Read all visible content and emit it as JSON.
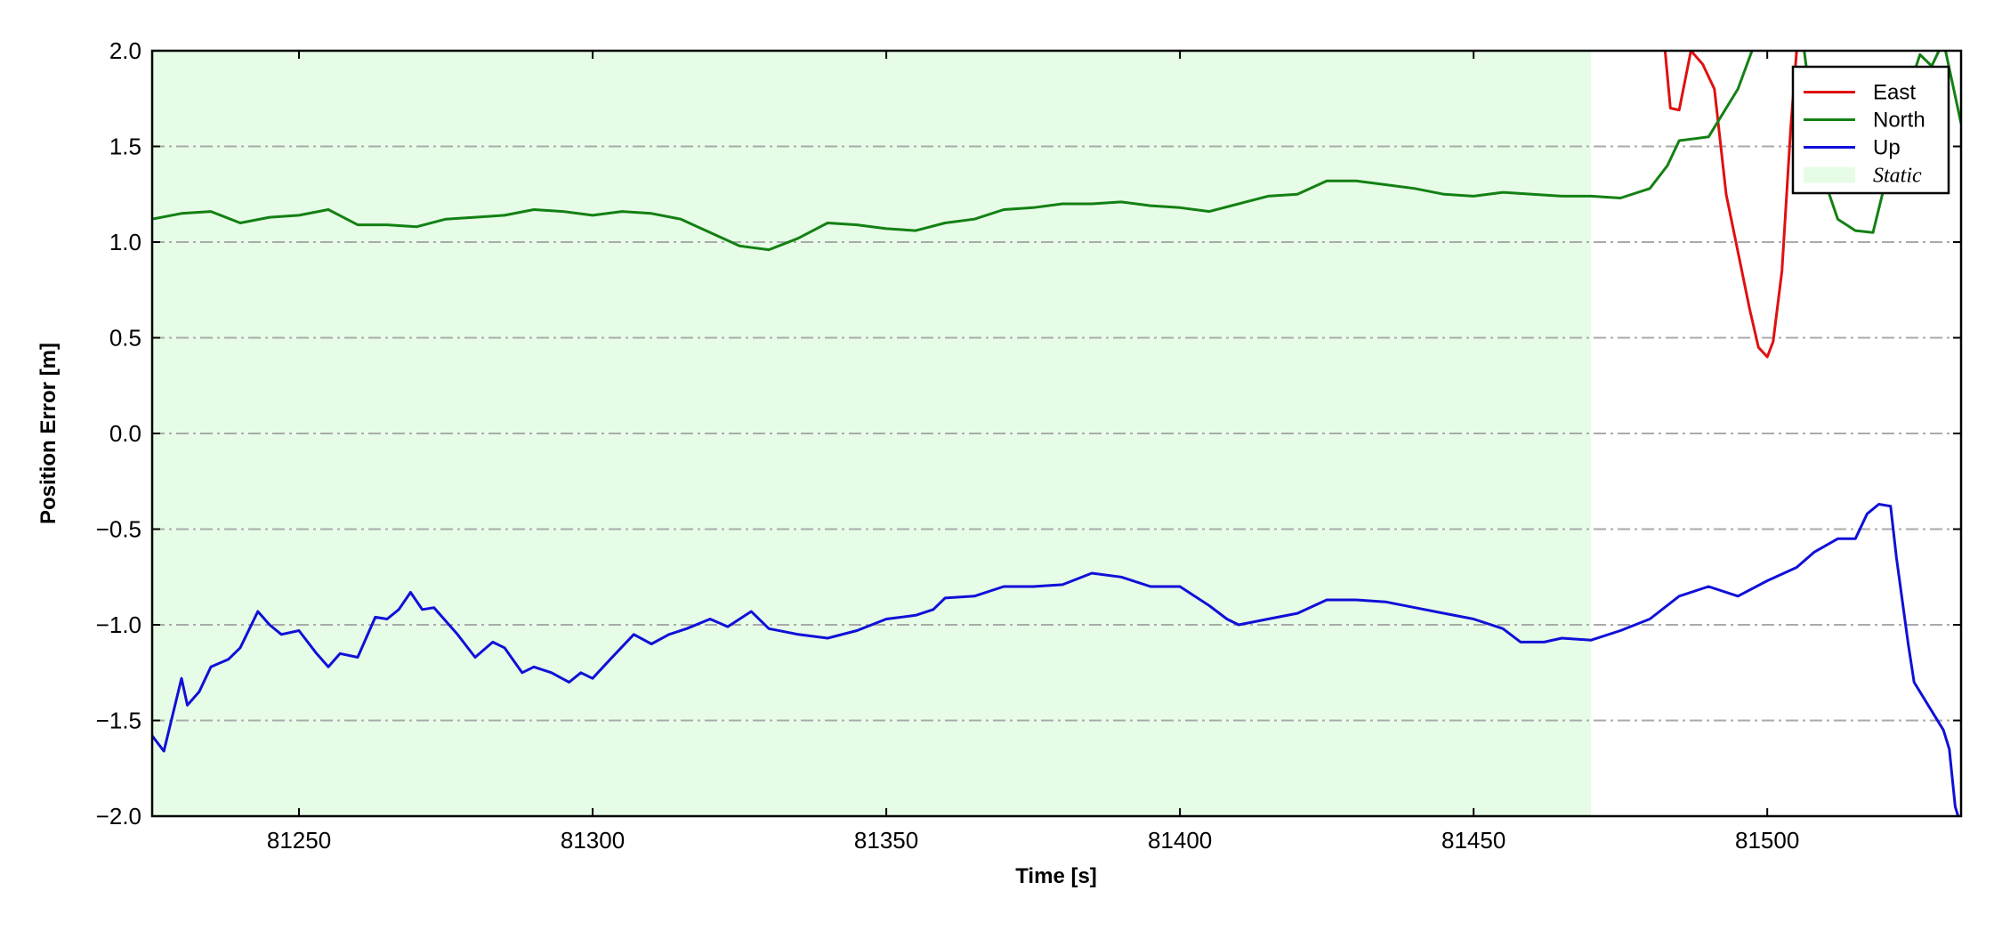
{
  "chart_data": {
    "type": "line",
    "xlabel": "Time [s]",
    "ylabel": "Position Error [m]",
    "xlim": [
      81225,
      81533
    ],
    "ylim": [
      -2,
      2
    ],
    "xticks": [
      81250,
      81300,
      81350,
      81400,
      81450,
      81500
    ],
    "yticks": [
      {
        "value": -2,
        "label": "−2.0"
      },
      {
        "value": -1.5,
        "label": "−1.5"
      },
      {
        "value": -1,
        "label": "−1.0"
      },
      {
        "value": -0.5,
        "label": "−0.5"
      },
      {
        "value": 0,
        "label": "0.0"
      },
      {
        "value": 0.5,
        "label": "0.5"
      },
      {
        "value": 1,
        "label": "1.0"
      },
      {
        "value": 1.5,
        "label": "1.5"
      },
      {
        "value": 2,
        "label": "2.0"
      }
    ],
    "grid": true,
    "legend": "upper right",
    "spans": [
      {
        "name": "Static",
        "start": 81225,
        "end": 81470,
        "color": "#e6fce6"
      }
    ],
    "series": [
      {
        "name": "East",
        "color": "#e01010",
        "x": [
          81482,
          81483.5,
          81485,
          81487,
          81489,
          81491,
          81493,
          81495,
          81497,
          81498.5,
          81500,
          81501,
          81502.5,
          81504,
          81505,
          81506
        ],
        "values": [
          2.2,
          1.7,
          1.69,
          2.0,
          1.93,
          1.8,
          1.25,
          0.95,
          0.65,
          0.45,
          0.4,
          0.48,
          0.85,
          1.6,
          2.0,
          2.3
        ]
      },
      {
        "name": "North",
        "color": "#138013",
        "x": [
          81225,
          81230,
          81235,
          81240,
          81245,
          81250,
          81255,
          81260,
          81265,
          81270,
          81275,
          81280,
          81285,
          81290,
          81295,
          81300,
          81305,
          81310,
          81315,
          81320,
          81325,
          81330,
          81335,
          81340,
          81345,
          81350,
          81355,
          81360,
          81365,
          81370,
          81375,
          81380,
          81385,
          81390,
          81395,
          81400,
          81405,
          81410,
          81415,
          81420,
          81425,
          81430,
          81435,
          81440,
          81445,
          81450,
          81455,
          81460,
          81465,
          81470,
          81475,
          81480,
          81483,
          81485,
          81490,
          81495,
          81498,
          81505,
          81508,
          81510,
          81512,
          81515,
          81518,
          81520,
          81523,
          81526,
          81528,
          81530,
          81533
        ],
        "values": [
          1.12,
          1.15,
          1.16,
          1.1,
          1.13,
          1.14,
          1.17,
          1.09,
          1.09,
          1.08,
          1.12,
          1.13,
          1.14,
          1.17,
          1.16,
          1.14,
          1.16,
          1.15,
          1.12,
          1.05,
          0.98,
          0.96,
          1.02,
          1.1,
          1.09,
          1.07,
          1.06,
          1.1,
          1.12,
          1.17,
          1.18,
          1.2,
          1.2,
          1.21,
          1.19,
          1.18,
          1.16,
          1.2,
          1.24,
          1.25,
          1.32,
          1.32,
          1.3,
          1.28,
          1.25,
          1.24,
          1.26,
          1.25,
          1.24,
          1.24,
          1.23,
          1.28,
          1.4,
          1.53,
          1.55,
          1.8,
          2.05,
          2.3,
          1.6,
          1.3,
          1.12,
          1.06,
          1.05,
          1.3,
          1.7,
          1.98,
          1.92,
          2.05,
          1.62
        ]
      },
      {
        "name": "Up",
        "color": "#1010d8",
        "x": [
          81225,
          81227,
          81230,
          81231,
          81233,
          81235,
          81238,
          81240,
          81243,
          81245,
          81247,
          81250,
          81253,
          81255,
          81257,
          81260,
          81263,
          81265,
          81267,
          81269,
          81271,
          81273,
          81277,
          81280,
          81283,
          81285,
          81288,
          81290,
          81293,
          81296,
          81298,
          81300,
          81303,
          81307,
          81310,
          81313,
          81316,
          81320,
          81323,
          81327,
          81330,
          81335,
          81340,
          81345,
          81350,
          81355,
          81358,
          81360,
          81365,
          81370,
          81375,
          81380,
          81385,
          81390,
          81395,
          81398,
          81400,
          81405,
          81408,
          81410,
          81415,
          81420,
          81425,
          81430,
          81435,
          81440,
          81445,
          81450,
          81455,
          81458,
          81462,
          81465,
          81470,
          81475,
          81480,
          81485,
          81490,
          81495,
          81500,
          81505,
          81508,
          81512,
          81515,
          81517,
          81519,
          81521,
          81522,
          81524,
          81525,
          81528,
          81530,
          81531,
          81532,
          81533
        ],
        "values": [
          -1.58,
          -1.66,
          -1.28,
          -1.42,
          -1.35,
          -1.22,
          -1.18,
          -1.12,
          -0.93,
          -1.0,
          -1.05,
          -1.03,
          -1.15,
          -1.22,
          -1.15,
          -1.17,
          -0.96,
          -0.97,
          -0.92,
          -0.83,
          -0.92,
          -0.91,
          -1.05,
          -1.17,
          -1.09,
          -1.12,
          -1.25,
          -1.22,
          -1.25,
          -1.3,
          -1.25,
          -1.28,
          -1.18,
          -1.05,
          -1.1,
          -1.05,
          -1.02,
          -0.97,
          -1.01,
          -0.93,
          -1.02,
          -1.05,
          -1.07,
          -1.03,
          -0.97,
          -0.95,
          -0.92,
          -0.86,
          -0.85,
          -0.8,
          -0.8,
          -0.79,
          -0.73,
          -0.75,
          -0.8,
          -0.8,
          -0.8,
          -0.9,
          -0.97,
          -1.0,
          -0.97,
          -0.94,
          -0.87,
          -0.87,
          -0.88,
          -0.91,
          -0.94,
          -0.97,
          -1.02,
          -1.09,
          -1.09,
          -1.07,
          -1.08,
          -1.03,
          -0.97,
          -0.85,
          -0.8,
          -0.85,
          -0.77,
          -0.7,
          -0.62,
          -0.55,
          -0.55,
          -0.42,
          -0.37,
          -0.38,
          -0.65,
          -1.1,
          -1.3,
          -1.45,
          -1.55,
          -1.65,
          -1.95,
          -2.05
        ]
      }
    ]
  }
}
